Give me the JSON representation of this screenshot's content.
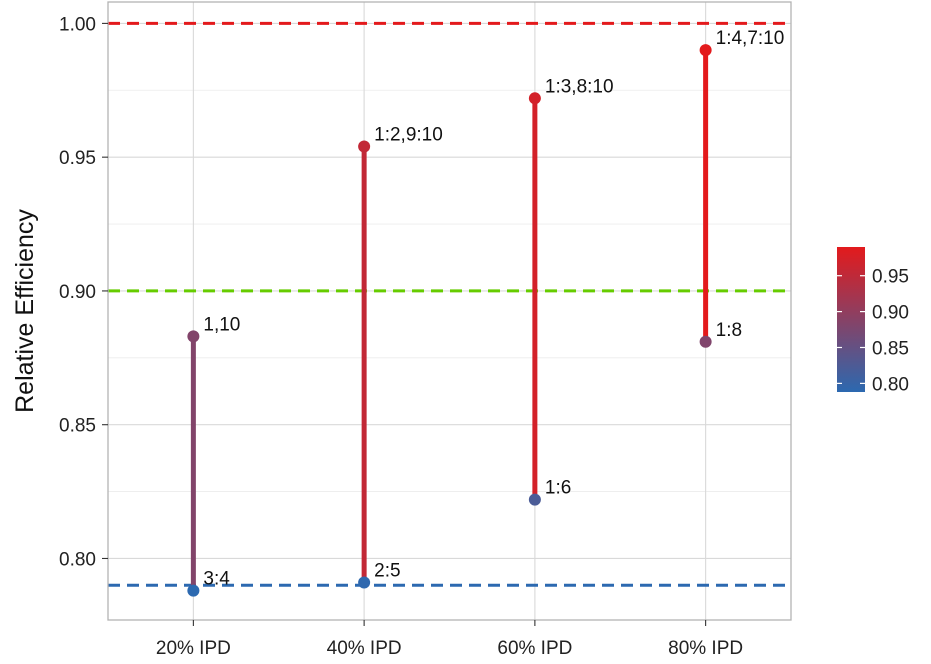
{
  "chart_data": {
    "type": "dumbbell",
    "title": "",
    "xlabel": "",
    "ylabel": "Relative Efficiency",
    "categories": [
      "20% IPD",
      "40% IPD",
      "60% IPD",
      "80% IPD"
    ],
    "ylim": [
      0.777,
      1.008
    ],
    "yticks": [
      0.8,
      0.85,
      0.9,
      0.95,
      1.0
    ],
    "ytick_labels": [
      "0.80",
      "0.85",
      "0.90",
      "0.95",
      "1.00"
    ],
    "grid": true,
    "segments": [
      {
        "category": "20% IPD",
        "low": 0.788,
        "high": 0.883,
        "low_label": "3:4",
        "high_label": "1,10"
      },
      {
        "category": "40% IPD",
        "low": 0.791,
        "high": 0.954,
        "low_label": "2:5",
        "high_label": "1:2,9:10"
      },
      {
        "category": "60% IPD",
        "low": 0.822,
        "high": 0.972,
        "low_label": "1:6",
        "high_label": "1:3,8:10"
      },
      {
        "category": "80% IPD",
        "low": 0.881,
        "high": 0.99,
        "low_label": "1:8",
        "high_label": "1:4,7:10"
      }
    ],
    "reference_lines": [
      {
        "y": 1.0,
        "color": "#e31a1c",
        "style": "dashed"
      },
      {
        "y": 0.9,
        "color": "#66cc00",
        "style": "dashed"
      },
      {
        "y": 0.79,
        "color": "#2c69b0",
        "style": "dashed"
      }
    ],
    "colorbar": {
      "range": [
        0.788,
        0.99
      ],
      "ticks": [
        0.8,
        0.85,
        0.9,
        0.95
      ],
      "tick_labels": [
        "0.80",
        "0.85",
        "0.90",
        "0.95"
      ],
      "low_color": "#2c69b0",
      "high_color": "#e31a1c",
      "placement": "right"
    }
  }
}
